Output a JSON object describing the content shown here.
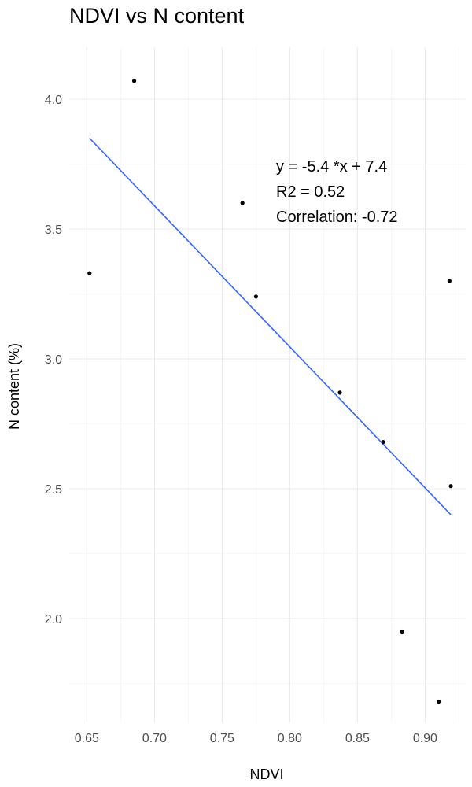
{
  "chart_data": {
    "type": "scatter",
    "title": "NDVI vs N content",
    "xlabel": "NDVI",
    "ylabel": "N content (%)",
    "xlim": [
      0.637,
      0.93
    ],
    "ylim": [
      1.6,
      4.2
    ],
    "x_ticks": [
      0.65,
      0.7,
      0.75,
      0.8,
      0.85,
      0.9
    ],
    "x_tick_labels": [
      "0.65",
      "0.70",
      "0.75",
      "0.80",
      "0.85",
      "0.90"
    ],
    "y_ticks": [
      2.0,
      2.5,
      3.0,
      3.5,
      4.0
    ],
    "y_tick_labels": [
      "2.0",
      "2.5",
      "3.0",
      "3.5",
      "4.0"
    ],
    "grid": true,
    "points": [
      {
        "x": 0.652,
        "y": 3.33
      },
      {
        "x": 0.685,
        "y": 4.07
      },
      {
        "x": 0.765,
        "y": 3.6
      },
      {
        "x": 0.775,
        "y": 3.24
      },
      {
        "x": 0.837,
        "y": 2.87
      },
      {
        "x": 0.869,
        "y": 2.68
      },
      {
        "x": 0.883,
        "y": 1.95
      },
      {
        "x": 0.91,
        "y": 1.68
      },
      {
        "x": 0.918,
        "y": 3.3
      },
      {
        "x": 0.919,
        "y": 2.51
      }
    ],
    "fit_line": {
      "x": [
        0.652,
        0.919
      ],
      "y": [
        3.85,
        2.4
      ],
      "color": "#3366ff"
    },
    "annotations": [
      "y = -5.4 *x + 7.4",
      "R2 = 0.52",
      "Correlation: -0.72"
    ],
    "point_color": "#000000"
  }
}
